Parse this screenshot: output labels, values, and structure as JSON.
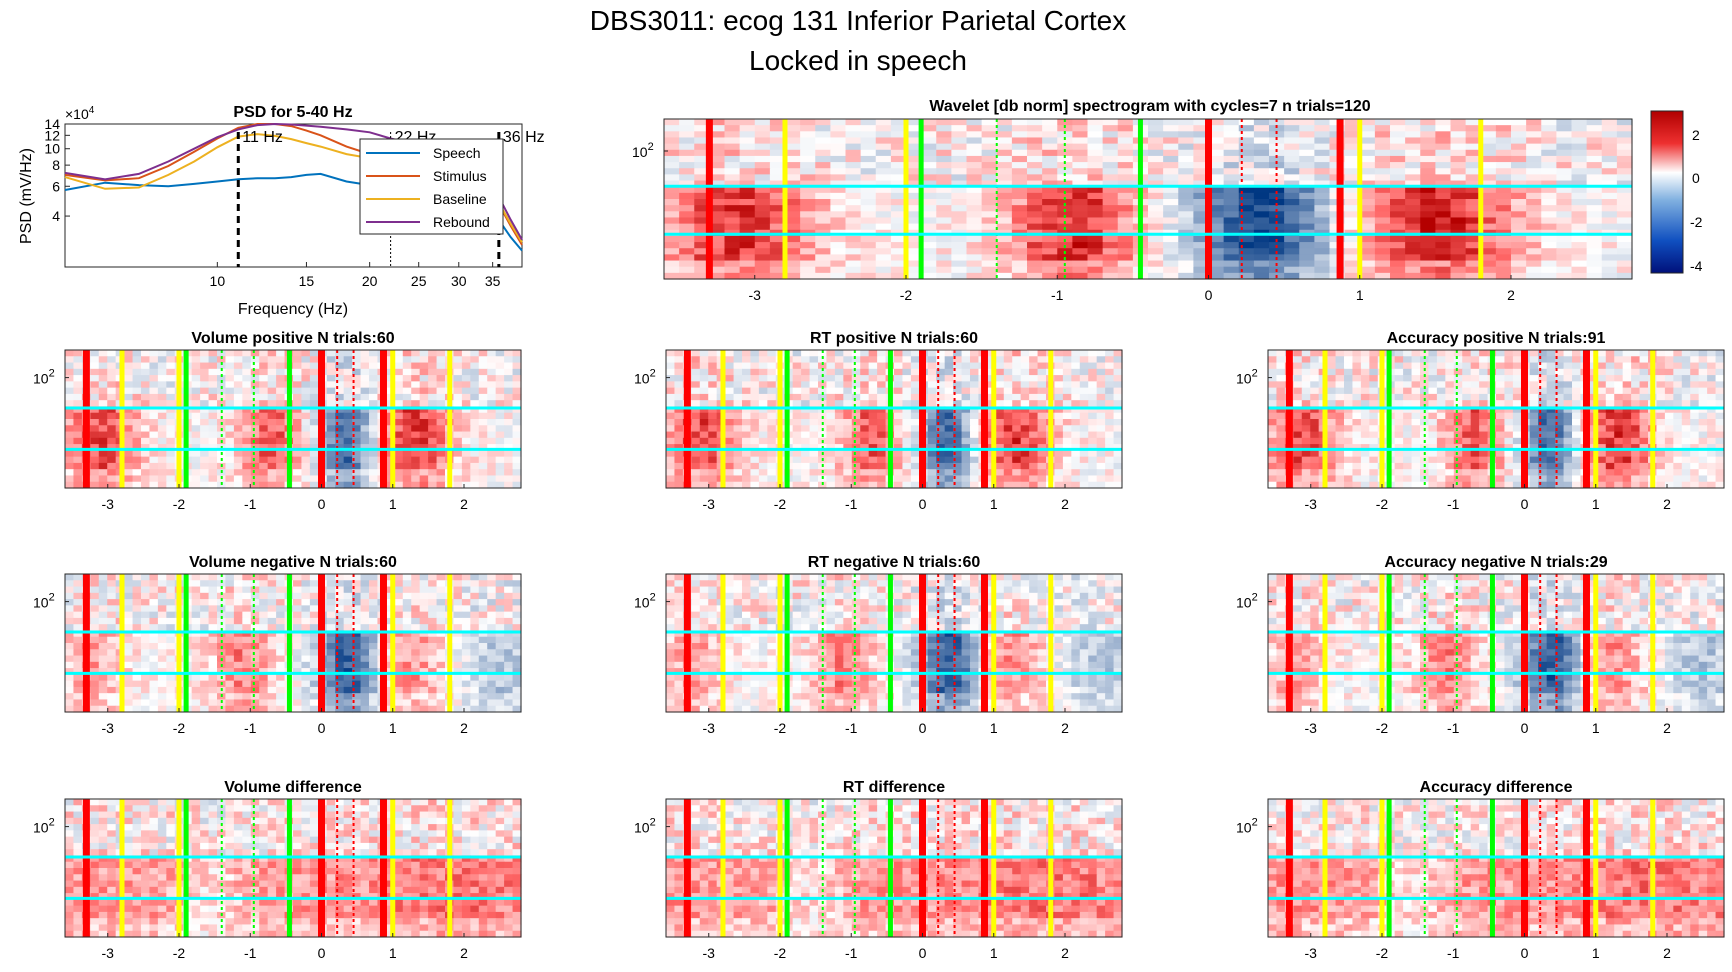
{
  "figure": {
    "title_line1": "DBS3011: ecog 131 Inferior Parietal Cortex",
    "title_line2": "Locked in speech"
  },
  "colors": {
    "speech": "#0072BD",
    "stimulus": "#D95319",
    "baseline": "#EDB120",
    "rebound": "#7E2F8E",
    "event_red": "#ff0000",
    "event_yellow": "#ffff00",
    "event_green": "#00ff00",
    "band_cyan": "#00ffff"
  },
  "chart_data": [
    {
      "id": "psd",
      "type": "line",
      "title": "PSD for 5-40 Hz",
      "xlabel": "Frequency (Hz)",
      "ylabel": "PSD (mV/Hz)",
      "xscale": "log",
      "yscale": "log",
      "xlim": [
        5,
        40
      ],
      "ylim": [
        20000,
        140000
      ],
      "x_ticks": [
        "10",
        "15",
        "20",
        "25",
        "30",
        "35"
      ],
      "y_ticks": [
        "4",
        "6",
        "8",
        "10",
        "12",
        "14"
      ],
      "y_exponent": "×10",
      "y_exponent_power": "4",
      "x": [
        5,
        6,
        7,
        8,
        9,
        10,
        11,
        12,
        13,
        14,
        15,
        16,
        18,
        20,
        22,
        25,
        28,
        30,
        33,
        36,
        38,
        40
      ],
      "series": [
        {
          "name": "Speech",
          "values": [
            57000,
            63000,
            61000,
            60000,
            62000,
            64000,
            66000,
            67000,
            67000,
            68000,
            70000,
            71000,
            64000,
            61000,
            60000,
            58000,
            55000,
            53000,
            46000,
            38000,
            30000,
            25000
          ]
        },
        {
          "name": "Stimulus",
          "values": [
            70000,
            65000,
            67000,
            79000,
            96000,
            115000,
            133000,
            145000,
            143000,
            136000,
            128000,
            120000,
            103000,
            93000,
            89000,
            86000,
            80000,
            73000,
            62000,
            47000,
            35000,
            27000
          ]
        },
        {
          "name": "Baseline",
          "values": [
            68000,
            58000,
            59000,
            70000,
            84000,
            102000,
            118000,
            122000,
            119000,
            114000,
            108000,
            103000,
            93000,
            88000,
            86000,
            84000,
            79000,
            72000,
            62000,
            48000,
            36000,
            28000
          ]
        },
        {
          "name": "Rebound",
          "values": [
            72000,
            66000,
            71000,
            84000,
            100000,
            117000,
            130000,
            138000,
            140000,
            139000,
            137000,
            135000,
            130000,
            125000,
            115000,
            105000,
            94000,
            85000,
            70000,
            52000,
            38000,
            29000
          ]
        }
      ],
      "annotations": [
        {
          "x": 11,
          "text": "11 Hz",
          "style": "dashed"
        },
        {
          "x": 22,
          "text": "22 Hz",
          "style": "dotted"
        },
        {
          "x": 36,
          "text": "36 Hz",
          "style": "dashed"
        }
      ],
      "legend_position": "upper-right"
    },
    {
      "id": "main",
      "type": "heatmap",
      "title": "Wavelet [db norm] spectrogram with cycles=7 n trials=120",
      "x_ticks": [
        "-3",
        "-2",
        "-1",
        "0",
        "1",
        "2"
      ],
      "y_tick": "10",
      "y_tick_power": "2",
      "xlim": [
        -3.6,
        2.8
      ],
      "colorbar": {
        "ticks": [
          "2",
          "0",
          "-2",
          "-4"
        ],
        "range": [
          -4.3,
          3.2
        ]
      },
      "event_lines": [
        {
          "t": -3.3,
          "color": "red"
        },
        {
          "t": -2.8,
          "color": "yellow"
        },
        {
          "t": -2.0,
          "color": "yellow"
        },
        {
          "t": -1.9,
          "color": "green"
        },
        {
          "t": -1.4,
          "color": "green",
          "style": "dotted"
        },
        {
          "t": -0.95,
          "color": "green",
          "style": "dotted"
        },
        {
          "t": -0.45,
          "color": "green"
        },
        {
          "t": 0.0,
          "color": "red"
        },
        {
          "t": 0.22,
          "color": "red",
          "style": "dotted"
        },
        {
          "t": 0.45,
          "color": "red",
          "style": "dotted"
        },
        {
          "t": 0.87,
          "color": "red"
        },
        {
          "t": 1.0,
          "color": "yellow"
        },
        {
          "t": 1.8,
          "color": "yellow"
        }
      ],
      "bands": [
        0.42,
        0.72
      ]
    },
    {
      "id": "vol_pos",
      "type": "heatmap",
      "title": "Volume positive N trials:60",
      "x_ticks": [
        "-3",
        "-2",
        "-1",
        "0",
        "1",
        "2"
      ],
      "y_tick": "10",
      "y_tick_power": "2"
    },
    {
      "id": "rt_pos",
      "type": "heatmap",
      "title": "RT positive N trials:60",
      "x_ticks": [
        "-3",
        "-2",
        "-1",
        "0",
        "1",
        "2"
      ],
      "y_tick": "10",
      "y_tick_power": "2"
    },
    {
      "id": "acc_pos",
      "type": "heatmap",
      "title": "Accuracy positive N trials:91",
      "x_ticks": [
        "-3",
        "-2",
        "-1",
        "0",
        "1",
        "2"
      ],
      "y_tick": "10",
      "y_tick_power": "2"
    },
    {
      "id": "vol_neg",
      "type": "heatmap",
      "title": "Volume negative N trials:60",
      "x_ticks": [
        "-3",
        "-2",
        "-1",
        "0",
        "1",
        "2"
      ],
      "y_tick": "10",
      "y_tick_power": "2"
    },
    {
      "id": "rt_neg",
      "type": "heatmap",
      "title": "RT negative N trials:60",
      "x_ticks": [
        "-3",
        "-2",
        "-1",
        "0",
        "1",
        "2"
      ],
      "y_tick": "10",
      "y_tick_power": "2"
    },
    {
      "id": "acc_neg",
      "type": "heatmap",
      "title": "Accuracy negative N trials:29",
      "x_ticks": [
        "-3",
        "-2",
        "-1",
        "0",
        "1",
        "2"
      ],
      "y_tick": "10",
      "y_tick_power": "2"
    },
    {
      "id": "vol_diff",
      "type": "heatmap",
      "title": "Volume difference",
      "x_ticks": [
        "-3",
        "-2",
        "-1",
        "0",
        "1",
        "2"
      ],
      "y_tick": "10",
      "y_tick_power": "2"
    },
    {
      "id": "rt_diff",
      "type": "heatmap",
      "title": "RT difference",
      "x_ticks": [
        "-3",
        "-2",
        "-1",
        "0",
        "1",
        "2"
      ],
      "y_tick": "10",
      "y_tick_power": "2"
    },
    {
      "id": "acc_diff",
      "type": "heatmap",
      "title": "Accuracy difference",
      "x_ticks": [
        "-3",
        "-2",
        "-1",
        "0",
        "1",
        "2"
      ],
      "y_tick": "10",
      "y_tick_power": "2"
    }
  ]
}
